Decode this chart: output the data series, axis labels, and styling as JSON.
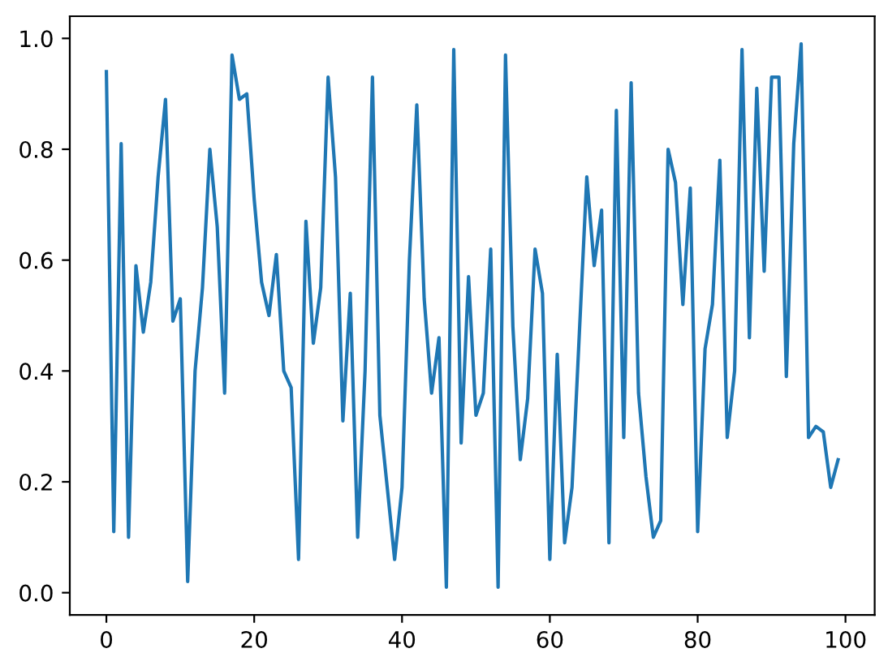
{
  "chart_data": {
    "type": "line",
    "x": [
      0,
      1,
      2,
      3,
      4,
      5,
      6,
      7,
      8,
      9,
      10,
      11,
      12,
      13,
      14,
      15,
      16,
      17,
      18,
      19,
      20,
      21,
      22,
      23,
      24,
      25,
      26,
      27,
      28,
      29,
      30,
      31,
      32,
      33,
      34,
      35,
      36,
      37,
      38,
      39,
      40,
      41,
      42,
      43,
      44,
      45,
      46,
      47,
      48,
      49,
      50,
      51,
      52,
      53,
      54,
      55,
      56,
      57,
      58,
      59,
      60,
      61,
      62,
      63,
      64,
      65,
      66,
      67,
      68,
      69,
      70,
      71,
      72,
      73,
      74,
      75,
      76,
      77,
      78,
      79,
      80,
      81,
      82,
      83,
      84,
      85,
      86,
      87,
      88,
      89,
      90,
      91,
      92,
      93,
      94,
      95,
      96,
      97,
      98,
      99
    ],
    "series": [
      {
        "color": "#1f77b4",
        "values": [
          0.94,
          0.11,
          0.81,
          0.1,
          0.59,
          0.47,
          0.56,
          0.75,
          0.89,
          0.49,
          0.53,
          0.02,
          0.4,
          0.55,
          0.8,
          0.66,
          0.36,
          0.97,
          0.89,
          0.9,
          0.71,
          0.56,
          0.5,
          0.61,
          0.4,
          0.37,
          0.06,
          0.67,
          0.45,
          0.55,
          0.93,
          0.75,
          0.31,
          0.54,
          0.1,
          0.4,
          0.93,
          0.32,
          0.19,
          0.06,
          0.19,
          0.6,
          0.88,
          0.53,
          0.36,
          0.46,
          0.01,
          0.98,
          0.27,
          0.57,
          0.32,
          0.36,
          0.62,
          0.01,
          0.97,
          0.48,
          0.24,
          0.35,
          0.62,
          0.54,
          0.06,
          0.43,
          0.09,
          0.19,
          0.47,
          0.75,
          0.59,
          0.69,
          0.09,
          0.87,
          0.28,
          0.92,
          0.36,
          0.21,
          0.1,
          0.13,
          0.8,
          0.74,
          0.52,
          0.73,
          0.11,
          0.44,
          0.52,
          0.78,
          0.28,
          0.4,
          0.98,
          0.46,
          0.91,
          0.58,
          0.93,
          0.93,
          0.39,
          0.81,
          0.99,
          0.28,
          0.3,
          0.29,
          0.19,
          0.24
        ]
      }
    ],
    "xlim": [
      -4.95,
      103.95
    ],
    "ylim": [
      -0.04,
      1.04
    ],
    "xticks": [
      0,
      20,
      40,
      60,
      80,
      100
    ],
    "yticks": [
      {
        "value": 0.0,
        "label": "0.0"
      },
      {
        "value": 0.2,
        "label": "0.2"
      },
      {
        "value": 0.4,
        "label": "0.4"
      },
      {
        "value": 0.6,
        "label": "0.6"
      },
      {
        "value": 0.8,
        "label": "0.8"
      },
      {
        "value": 1.0,
        "label": "1.0"
      }
    ]
  }
}
